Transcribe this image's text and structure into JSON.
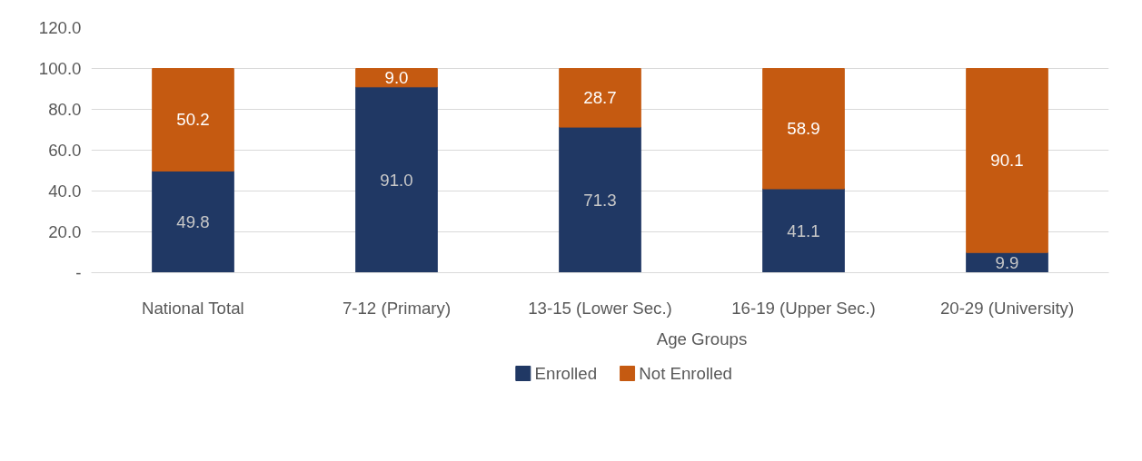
{
  "chart_data": {
    "type": "bar",
    "stacked": true,
    "categories": [
      "National Total",
      "7-12 (Primary)",
      "13-15 (Lower Sec.)",
      "16-19 (Upper Sec.)",
      "20-29 (University)"
    ],
    "series": [
      {
        "name": "Enrolled",
        "color": "#203864",
        "values": [
          49.8,
          91.0,
          71.3,
          41.1,
          9.9
        ],
        "value_labels": [
          "49.8",
          "91.0",
          "71.3",
          "41.1",
          "9.9"
        ]
      },
      {
        "name": "Not Enrolled",
        "color": "#c55a11",
        "values": [
          50.2,
          9.0,
          28.7,
          58.9,
          90.1
        ],
        "value_labels": [
          "50.2",
          "9.0",
          "28.7",
          "58.9",
          "90.1"
        ]
      }
    ],
    "annotations": [
      "Age Groups"
    ],
    "ylim": [
      0,
      120
    ],
    "yticks": [
      {
        "value": 0,
        "label": "-"
      },
      {
        "value": 20,
        "label": "20.0"
      },
      {
        "value": 40,
        "label": "40.0"
      },
      {
        "value": 60,
        "label": "60.0"
      },
      {
        "value": 80,
        "label": "80.0"
      },
      {
        "value": 100,
        "label": "100.0"
      },
      {
        "value": 120,
        "label": "120.0"
      }
    ],
    "grid": "y",
    "legend": "bottom"
  }
}
